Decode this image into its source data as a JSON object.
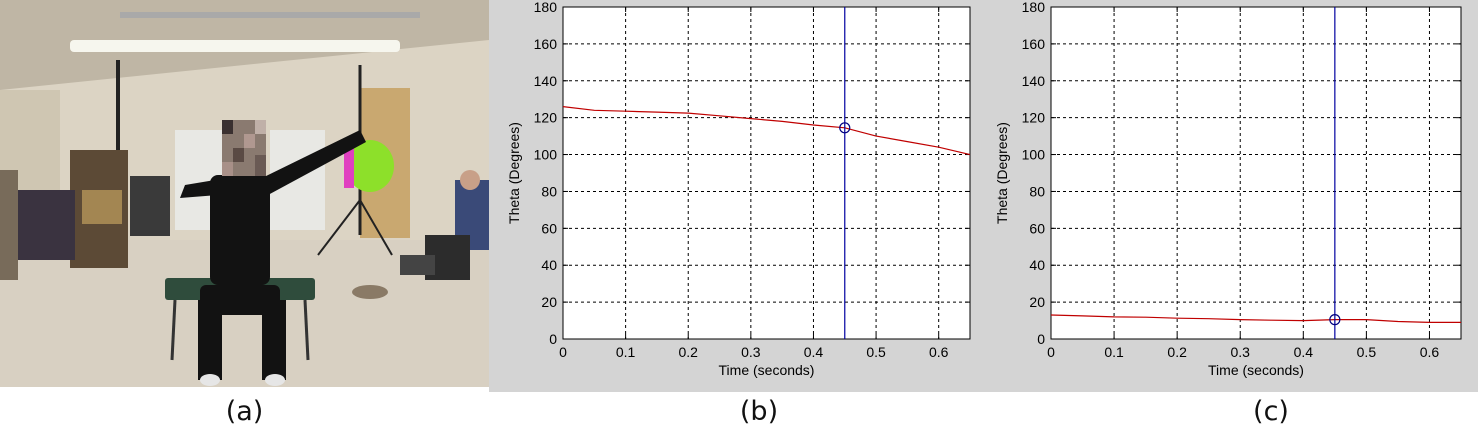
{
  "captions": {
    "a": "(a)",
    "b": "(b)",
    "c": "(c)"
  },
  "colors": {
    "curve": "#c00000",
    "cursor": "#0000a0",
    "marker": "#000080",
    "figure_bg": "#d4d4d4"
  },
  "chart_data": [
    {
      "type": "line",
      "panel": "b",
      "xlabel": "Time (seconds)",
      "ylabel": "Theta (Degrees)",
      "xlim": [
        0,
        0.65
      ],
      "ylim": [
        0,
        180
      ],
      "xticks": [
        0,
        0.1,
        0.2,
        0.3,
        0.4,
        0.5,
        0.6
      ],
      "yticks": [
        0,
        20,
        40,
        60,
        80,
        100,
        120,
        140,
        160,
        180
      ],
      "grid": true,
      "series": [
        {
          "x": [
            0,
            0.05,
            0.1,
            0.15,
            0.2,
            0.25,
            0.3,
            0.35,
            0.4,
            0.45,
            0.5,
            0.55,
            0.6,
            0.65
          ],
          "y": [
            126,
            124,
            123.5,
            123,
            122.5,
            121,
            119.5,
            118,
            116,
            114.5,
            110,
            107,
            104,
            100
          ]
        }
      ],
      "cursor_x": 0.45,
      "marker": {
        "x": 0.45,
        "y": 114.5
      }
    },
    {
      "type": "line",
      "panel": "c",
      "xlabel": "Time (seconds)",
      "ylabel": "Theta (Degrees)",
      "xlim": [
        0,
        0.65
      ],
      "ylim": [
        0,
        180
      ],
      "xticks": [
        0,
        0.1,
        0.2,
        0.3,
        0.4,
        0.5,
        0.6
      ],
      "yticks": [
        0,
        20,
        40,
        60,
        80,
        100,
        120,
        140,
        160,
        180
      ],
      "grid": true,
      "series": [
        {
          "x": [
            0,
            0.05,
            0.1,
            0.15,
            0.2,
            0.25,
            0.3,
            0.35,
            0.4,
            0.45,
            0.5,
            0.55,
            0.6,
            0.65
          ],
          "y": [
            13,
            12.5,
            12,
            11.8,
            11.3,
            11,
            10.5,
            10.2,
            10,
            10.5,
            10.5,
            9.5,
            9,
            9
          ]
        }
      ],
      "cursor_x": 0.45,
      "marker": {
        "x": 0.45,
        "y": 10.5
      }
    }
  ]
}
